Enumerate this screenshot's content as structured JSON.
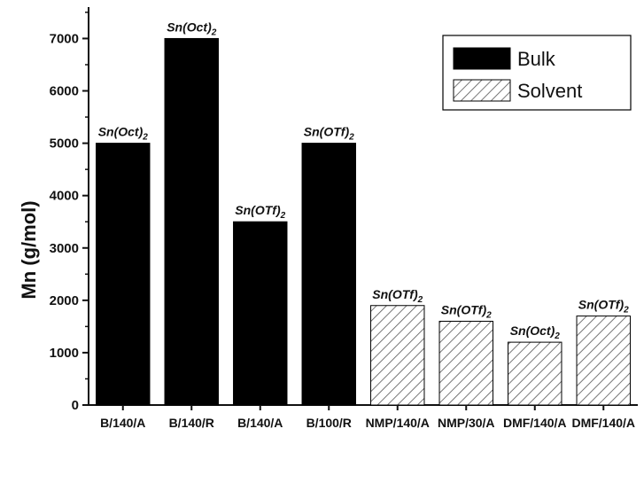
{
  "chart_data": {
    "type": "bar",
    "ylabel": "Mn (g/mol)",
    "xlabel": "",
    "ylim": [
      0,
      7600
    ],
    "yticks": [
      0,
      1000,
      2000,
      3000,
      4000,
      5000,
      6000,
      7000
    ],
    "categories": [
      "B/140/A",
      "B/140/R",
      "B/140/A",
      "B/100/R",
      "NMP/140/A",
      "NMP/30/A",
      "DMF/140/A",
      "DMF/140/A"
    ],
    "values": [
      5000,
      7000,
      3500,
      5000,
      1900,
      1600,
      1200,
      1700
    ],
    "groups": [
      "Bulk",
      "Bulk",
      "Bulk",
      "Bulk",
      "Solvent",
      "Solvent",
      "Solvent",
      "Solvent"
    ],
    "annotations": [
      {
        "base": "Sn(Oct)",
        "sub": "2"
      },
      {
        "base": "Sn(Oct)",
        "sub": "2"
      },
      {
        "base": "Sn(OTf)",
        "sub": "2"
      },
      {
        "base": "Sn(OTf)",
        "sub": "2"
      },
      {
        "base": "Sn(OTf)",
        "sub": "2"
      },
      {
        "base": "Sn(OTf)",
        "sub": "2"
      },
      {
        "base": "Sn(Oct)",
        "sub": "2"
      },
      {
        "base": "Sn(OTf)",
        "sub": "2"
      }
    ],
    "legend": {
      "position": "top-right",
      "items": [
        {
          "label": "Bulk",
          "style": "solid"
        },
        {
          "label": "Solvent",
          "style": "hatched"
        }
      ]
    },
    "colors": {
      "bulk": "#000000",
      "hatch": "#555555",
      "axis": "#111111"
    }
  }
}
